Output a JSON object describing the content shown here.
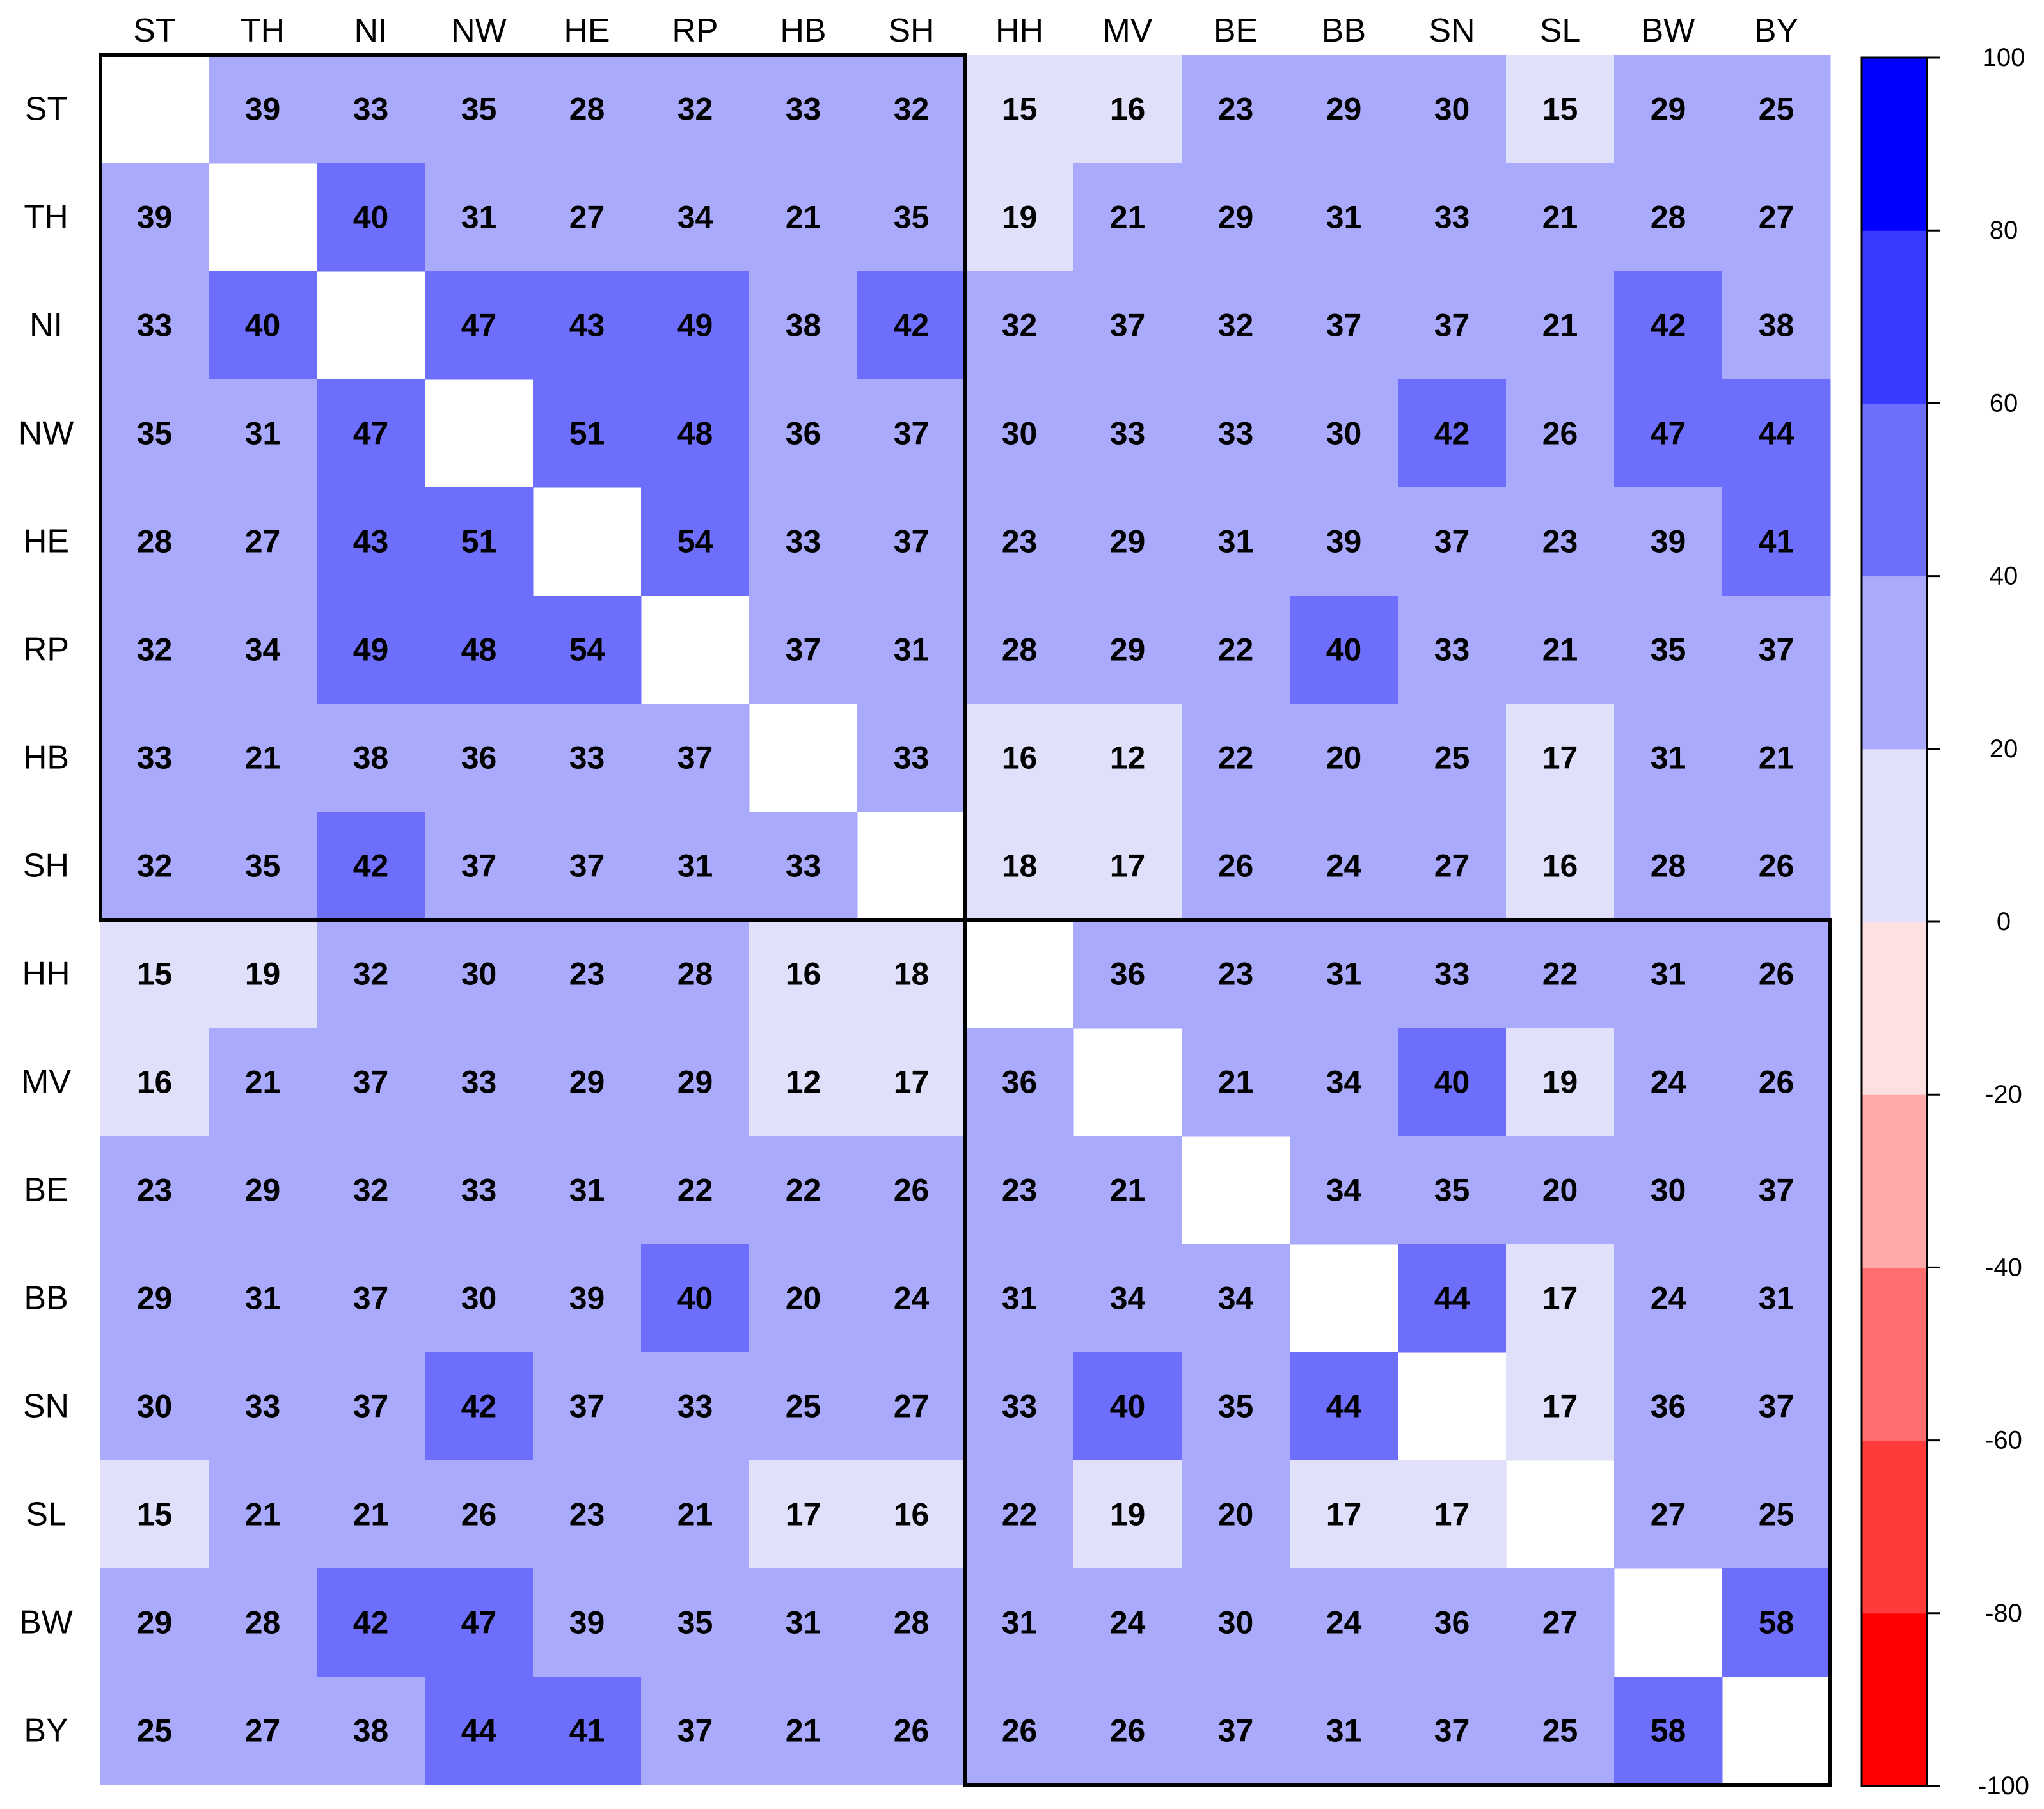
{
  "chart_data": {
    "type": "heatmap",
    "x_categories": [
      "ST",
      "TH",
      "NI",
      "NW",
      "HE",
      "RP",
      "HB",
      "SH",
      "HH",
      "MV",
      "BE",
      "BB",
      "SN",
      "SL",
      "BW",
      "BY"
    ],
    "y_categories": [
      "ST",
      "TH",
      "NI",
      "NW",
      "HE",
      "RP",
      "HB",
      "SH",
      "HH",
      "MV",
      "BE",
      "BB",
      "SN",
      "SL",
      "BW",
      "BY"
    ],
    "values": [
      [
        null,
        39,
        33,
        35,
        28,
        32,
        33,
        32,
        15,
        16,
        23,
        29,
        30,
        15,
        29,
        25
      ],
      [
        39,
        null,
        40,
        31,
        27,
        34,
        21,
        35,
        19,
        21,
        29,
        31,
        33,
        21,
        28,
        27
      ],
      [
        33,
        40,
        null,
        47,
        43,
        49,
        38,
        42,
        32,
        37,
        32,
        37,
        37,
        21,
        42,
        38
      ],
      [
        35,
        31,
        47,
        null,
        51,
        48,
        36,
        37,
        30,
        33,
        33,
        30,
        42,
        26,
        47,
        44
      ],
      [
        28,
        27,
        43,
        51,
        null,
        54,
        33,
        37,
        23,
        29,
        31,
        39,
        37,
        23,
        39,
        41
      ],
      [
        32,
        34,
        49,
        48,
        54,
        null,
        37,
        31,
        28,
        29,
        22,
        40,
        33,
        21,
        35,
        37
      ],
      [
        33,
        21,
        38,
        36,
        33,
        37,
        null,
        33,
        16,
        12,
        22,
        20,
        25,
        17,
        31,
        21
      ],
      [
        32,
        35,
        42,
        37,
        37,
        31,
        33,
        null,
        18,
        17,
        26,
        24,
        27,
        16,
        28,
        26
      ],
      [
        15,
        19,
        32,
        30,
        23,
        28,
        16,
        18,
        null,
        36,
        23,
        31,
        33,
        22,
        31,
        26
      ],
      [
        16,
        21,
        37,
        33,
        29,
        29,
        12,
        17,
        36,
        null,
        21,
        34,
        40,
        19,
        24,
        26
      ],
      [
        23,
        29,
        32,
        33,
        31,
        22,
        22,
        26,
        23,
        21,
        null,
        34,
        35,
        20,
        30,
        37
      ],
      [
        29,
        31,
        37,
        30,
        39,
        40,
        20,
        24,
        31,
        34,
        34,
        null,
        44,
        17,
        24,
        31
      ],
      [
        30,
        33,
        37,
        42,
        37,
        33,
        25,
        27,
        33,
        40,
        35,
        44,
        null,
        17,
        36,
        37
      ],
      [
        15,
        21,
        21,
        26,
        23,
        21,
        17,
        16,
        22,
        19,
        20,
        17,
        17,
        null,
        27,
        25
      ],
      [
        29,
        28,
        42,
        47,
        39,
        35,
        31,
        28,
        31,
        24,
        30,
        24,
        36,
        27,
        null,
        58
      ],
      [
        25,
        27,
        38,
        44,
        41,
        37,
        21,
        26,
        26,
        26,
        37,
        31,
        37,
        25,
        58,
        null
      ]
    ],
    "colorbar": {
      "lim": [
        -100,
        100
      ],
      "ticks": [
        -100,
        -80,
        -60,
        -40,
        -20,
        0,
        20,
        40,
        60,
        80,
        100
      ],
      "colors": [
        "#ff0000",
        "#ff3a3a",
        "#ff6e6e",
        "#ffaaaa",
        "#ffe0e0",
        "#e0e0fa",
        "#aaaafc",
        "#6e6efc",
        "#3a3aff",
        "#0000ff"
      ]
    }
  }
}
